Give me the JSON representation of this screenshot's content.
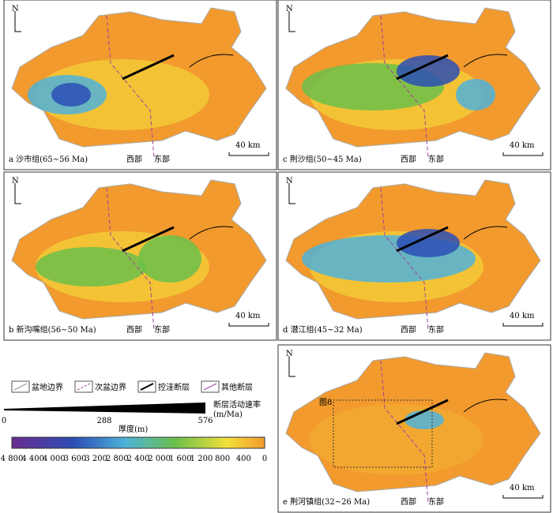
{
  "panels": [
    {
      "caption": "a 沙市组(65~56 Ma)",
      "north": "N",
      "west": "西部",
      "east": "东部",
      "scale": "40 km"
    },
    {
      "caption": "c 荆沙组(50~45 Ma)",
      "north": "N",
      "west": "西部",
      "east": "东部",
      "scale": "40 km"
    },
    {
      "caption": "b 新沟嘴组(56~50 Ma)",
      "north": "N",
      "west": "西部",
      "east": "东部",
      "scale": "40 km"
    },
    {
      "caption": "d 潜江组(45~32 Ma)",
      "north": "N",
      "west": "西部",
      "east": "东部",
      "scale": "40 km"
    },
    {
      "caption": "e 荆河镇组(32~26 Ma)",
      "north": "N",
      "west": "西部",
      "east": "东部",
      "scale": "40 km",
      "inset": "图8"
    }
  ],
  "legend": {
    "items": [
      "盆地边界",
      "次盆边界",
      "控洼断层",
      "其他断层"
    ],
    "rate": {
      "ticks": [
        "0",
        "288",
        "576"
      ],
      "label": "断层活动速率",
      "unit": "(m/Ma)"
    },
    "thickness": {
      "title": "厚度(m)",
      "ticks": [
        "4 800",
        "4 400",
        "4 000",
        "3 600",
        "3 200",
        "2 800",
        "2 400",
        "2 000",
        "1 600",
        "1 200",
        "800",
        "400",
        "0"
      ]
    }
  }
}
